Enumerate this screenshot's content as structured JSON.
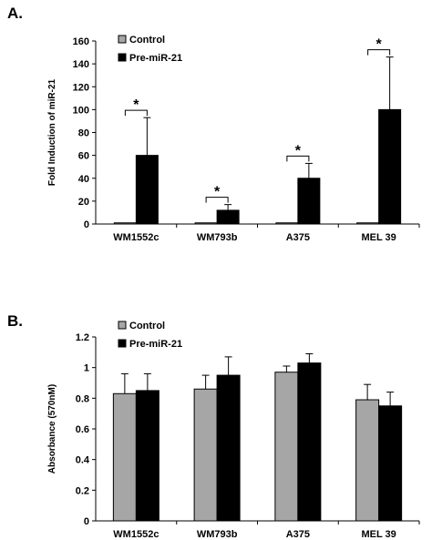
{
  "chart_data": [
    {
      "type": "bar",
      "panel_label": "A.",
      "categories": [
        "WM1552c",
        "WM793b",
        "A375",
        "MEL 39"
      ],
      "series": [
        {
          "name": "Control",
          "values": [
            1,
            1,
            1,
            1
          ],
          "errors": [
            0,
            0,
            0,
            0
          ],
          "color": "#a6a6a6"
        },
        {
          "name": "Pre-miR-21",
          "values": [
            60,
            12,
            40,
            100
          ],
          "errors": [
            33,
            5,
            13,
            46
          ],
          "color": "#000000"
        }
      ],
      "ylabel": "Fold Induction of miR-21",
      "ylim": [
        0,
        160
      ],
      "yticks": [
        0,
        20,
        40,
        60,
        80,
        100,
        120,
        140,
        160
      ],
      "significance": [
        "*",
        "*",
        "*",
        "*"
      ],
      "grid": false,
      "legend_position": "top-left"
    },
    {
      "type": "bar",
      "panel_label": "B.",
      "categories": [
        "WM1552c",
        "WM793b",
        "A375",
        "MEL 39"
      ],
      "series": [
        {
          "name": "Control",
          "values": [
            0.83,
            0.86,
            0.97,
            0.79
          ],
          "errors": [
            0.13,
            0.09,
            0.04,
            0.1
          ],
          "color": "#a6a6a6"
        },
        {
          "name": "Pre-miR-21",
          "values": [
            0.85,
            0.95,
            1.03,
            0.75
          ],
          "errors": [
            0.11,
            0.12,
            0.06,
            0.09
          ],
          "color": "#000000"
        }
      ],
      "ylabel": "Absorbance (570nM)",
      "ylim": [
        0,
        1.2
      ],
      "yticks": [
        0,
        0.2,
        0.4,
        0.6,
        0.8,
        1,
        1.2
      ],
      "grid": false,
      "legend_position": "top-left"
    }
  ]
}
